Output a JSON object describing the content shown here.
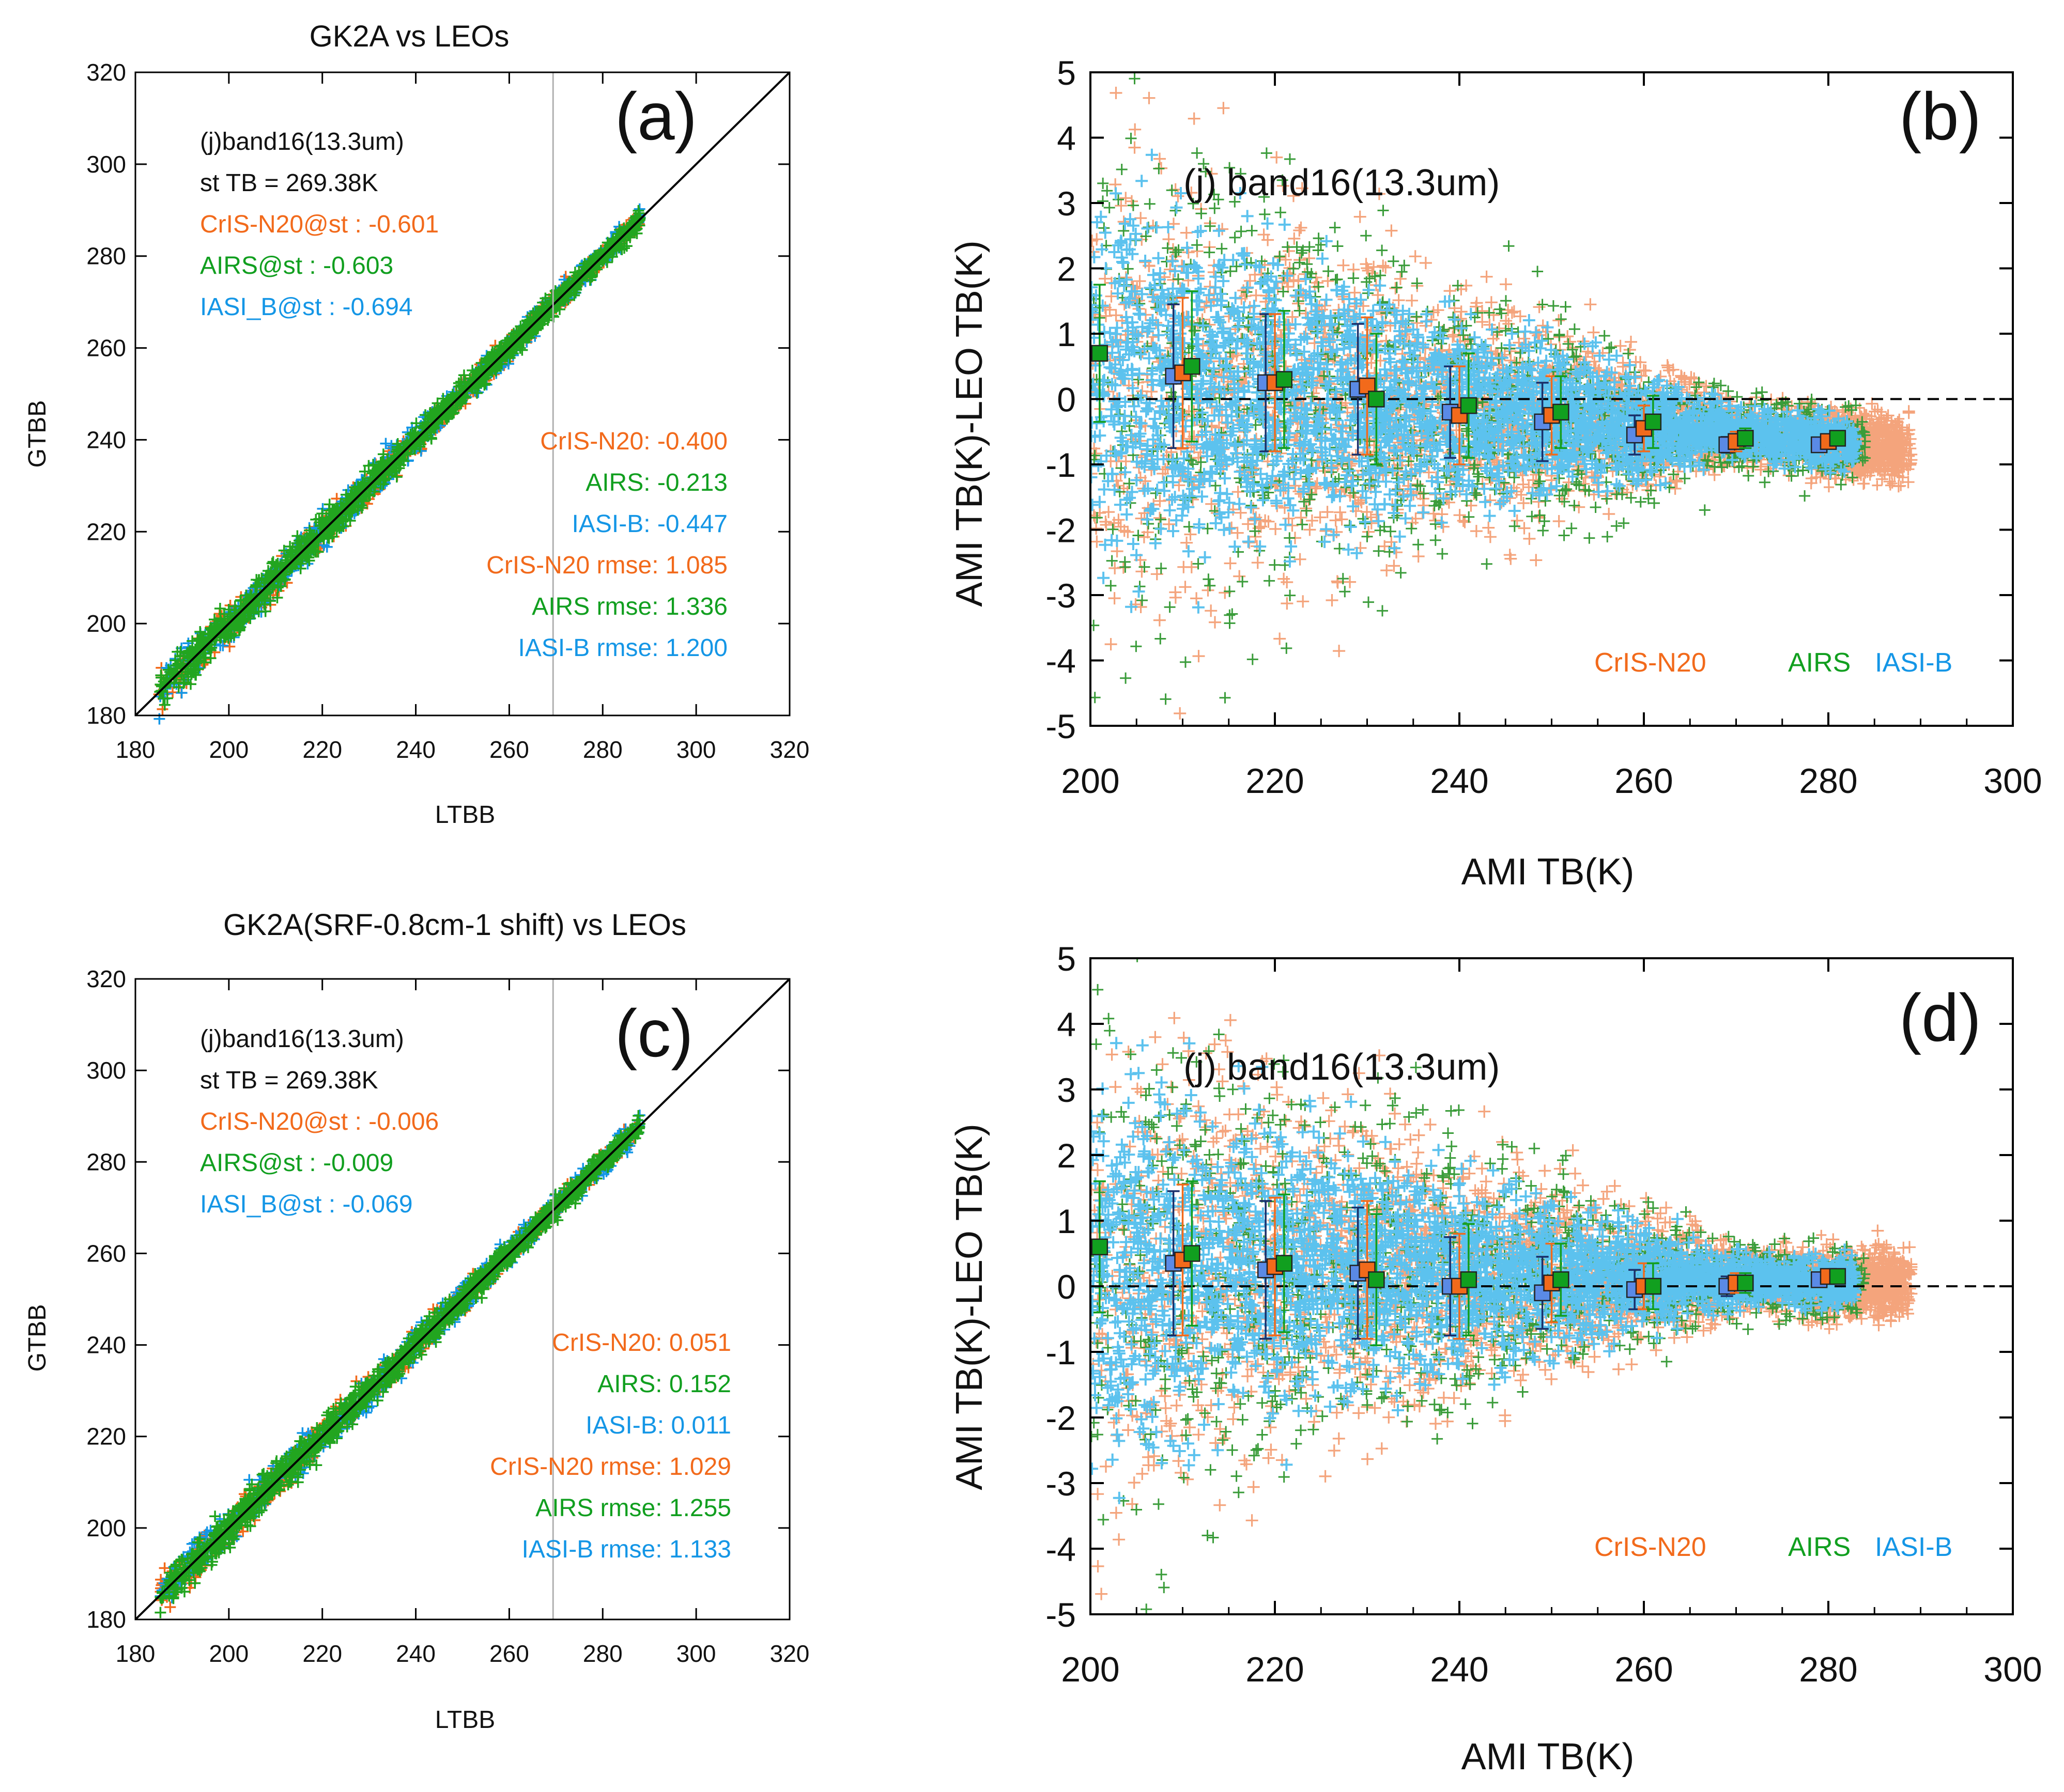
{
  "chart_data": [
    {
      "panel": "(a)",
      "type": "scatter",
      "title": "GK2A vs LEOs",
      "xlabel": "LTBB",
      "ylabel": "GTBB",
      "xlim": [
        180,
        320
      ],
      "ylim": [
        180,
        320
      ],
      "xticks": [
        "180",
        "200",
        "220",
        "240",
        "260",
        "280",
        "300",
        "320"
      ],
      "yticks": [
        "180",
        "200",
        "220",
        "240",
        "260",
        "280",
        "300",
        "320"
      ],
      "reference_line": "1:1",
      "vertical_marker_x": 269.38,
      "data_range": [
        185,
        288
      ],
      "spread": 3,
      "annotations_top": [
        {
          "text": "(j)band16(13.3um)",
          "color": "#111111"
        },
        {
          "text": "st TB = 269.38K",
          "color": "#111111"
        },
        {
          "text": "CrIS-N20@st : -0.601",
          "color": "#f26a1b"
        },
        {
          "text": "AIRS@st : -0.603",
          "color": "#119f1f"
        },
        {
          "text": "IASI_B@st : -0.694",
          "color": "#1496e6"
        }
      ],
      "annotations_bottom": [
        {
          "text": "CrIS-N20: -0.400",
          "color": "#f26a1b"
        },
        {
          "text": "AIRS: -0.213",
          "color": "#119f1f"
        },
        {
          "text": "IASI-B: -0.447",
          "color": "#1496e6"
        },
        {
          "text": "CrIS-N20 rmse: 1.085",
          "color": "#f26a1b"
        },
        {
          "text": "AIRS rmse: 1.336",
          "color": "#119f1f"
        },
        {
          "text": "IASI-B rmse: 1.200",
          "color": "#1496e6"
        }
      ]
    },
    {
      "panel": "(b)",
      "type": "scatter",
      "title": "(j) band16(13.3um)",
      "xlabel": "AMI TB(K)",
      "ylabel": "AMI TB(K)-LEO TB(K)",
      "xlim": [
        200,
        300
      ],
      "ylim": [
        -5,
        5
      ],
      "xticks": [
        "200",
        "220",
        "240",
        "260",
        "280",
        "300"
      ],
      "yticks": [
        "-5",
        "-4",
        "-3",
        "-2",
        "-1",
        "0",
        "1",
        "2",
        "3",
        "4",
        "5"
      ],
      "reference_line_y": 0,
      "legend": [
        {
          "text": "CrIS-N20",
          "color": "#f26a1b"
        },
        {
          "text": "AIRS",
          "color": "#119f1f"
        },
        {
          "text": "IASI-B",
          "color": "#1496e6"
        }
      ],
      "series": [
        {
          "name": "IASI-B",
          "color": "#5a8ae6",
          "x": [
            209,
            219,
            229,
            239,
            249,
            259,
            269,
            279
          ],
          "y": [
            0.35,
            0.25,
            0.15,
            -0.2,
            -0.35,
            -0.55,
            -0.7,
            -0.7
          ],
          "err": [
            1.1,
            1.05,
            1.0,
            0.7,
            0.6,
            0.3,
            0.12,
            0.08
          ]
        },
        {
          "name": "CrIS-N20",
          "color": "#f26a1b",
          "x": [
            210,
            220,
            230,
            240,
            250,
            260,
            270,
            280
          ],
          "y": [
            0.4,
            0.25,
            0.2,
            -0.25,
            -0.25,
            -0.45,
            -0.65,
            -0.65
          ],
          "err": [
            1.15,
            1.05,
            1.05,
            0.75,
            0.6,
            0.35,
            0.15,
            0.1
          ]
        },
        {
          "name": "AIRS",
          "color": "#119f1f",
          "x": [
            201,
            211,
            221,
            231,
            241,
            251,
            261,
            271,
            281
          ],
          "y": [
            0.7,
            0.5,
            0.3,
            0.0,
            -0.1,
            -0.2,
            -0.35,
            -0.6,
            -0.6
          ],
          "err": [
            1.05,
            1.15,
            1.05,
            1.0,
            0.8,
            0.55,
            0.4,
            0.15,
            0.1
          ]
        }
      ]
    },
    {
      "panel": "(c)",
      "type": "scatter",
      "title": "GK2A(SRF-0.8cm-1 shift) vs LEOs",
      "xlabel": "LTBB",
      "ylabel": "GTBB",
      "xlim": [
        180,
        320
      ],
      "ylim": [
        180,
        320
      ],
      "xticks": [
        "180",
        "200",
        "220",
        "240",
        "260",
        "280",
        "300",
        "320"
      ],
      "yticks": [
        "180",
        "200",
        "220",
        "240",
        "260",
        "280",
        "300",
        "320"
      ],
      "reference_line": "1:1",
      "vertical_marker_x": 269.38,
      "data_range": [
        185,
        288
      ],
      "spread": 3,
      "annotations_top": [
        {
          "text": "(j)band16(13.3um)",
          "color": "#111111"
        },
        {
          "text": "st TB = 269.38K",
          "color": "#111111"
        },
        {
          "text": "CrIS-N20@st : -0.006",
          "color": "#f26a1b"
        },
        {
          "text": "AIRS@st : -0.009",
          "color": "#119f1f"
        },
        {
          "text": "IASI_B@st : -0.069",
          "color": "#1496e6"
        }
      ],
      "annotations_bottom": [
        {
          "text": "CrIS-N20: 0.051",
          "color": "#f26a1b"
        },
        {
          "text": "AIRS: 0.152",
          "color": "#119f1f"
        },
        {
          "text": "IASI-B: 0.011",
          "color": "#1496e6"
        },
        {
          "text": "CrIS-N20 rmse: 1.029",
          "color": "#f26a1b"
        },
        {
          "text": "AIRS rmse: 1.255",
          "color": "#119f1f"
        },
        {
          "text": "IASI-B rmse: 1.133",
          "color": "#1496e6"
        }
      ]
    },
    {
      "panel": "(d)",
      "type": "scatter",
      "title": "(j) band16(13.3um)",
      "xlabel": "AMI TB(K)",
      "ylabel": "AMI TB(K)-LEO TB(K)",
      "xlim": [
        200,
        300
      ],
      "ylim": [
        -5,
        5
      ],
      "xticks": [
        "200",
        "220",
        "240",
        "260",
        "280",
        "300"
      ],
      "yticks": [
        "-5",
        "-4",
        "-3",
        "-2",
        "-1",
        "0",
        "1",
        "2",
        "3",
        "4",
        "5"
      ],
      "reference_line_y": 0,
      "legend": [
        {
          "text": "CrIS-N20",
          "color": "#f26a1b"
        },
        {
          "text": "AIRS",
          "color": "#119f1f"
        },
        {
          "text": "IASI-B",
          "color": "#1496e6"
        }
      ],
      "series": [
        {
          "name": "IASI-B",
          "color": "#5a8ae6",
          "x": [
            209,
            219,
            229,
            239,
            249,
            259,
            269,
            279
          ],
          "y": [
            0.35,
            0.25,
            0.2,
            0.0,
            -0.1,
            -0.05,
            0.0,
            0.1
          ],
          "err": [
            1.1,
            1.05,
            1.0,
            0.75,
            0.55,
            0.3,
            0.15,
            0.1
          ]
        },
        {
          "name": "CrIS-N20",
          "color": "#f26a1b",
          "x": [
            210,
            220,
            230,
            240,
            250,
            260,
            270,
            280
          ],
          "y": [
            0.4,
            0.3,
            0.25,
            0.0,
            0.05,
            0.0,
            0.05,
            0.15
          ],
          "err": [
            1.15,
            1.05,
            1.05,
            0.8,
            0.6,
            0.35,
            0.15,
            0.1
          ]
        },
        {
          "name": "AIRS",
          "color": "#119f1f",
          "x": [
            201,
            211,
            221,
            231,
            241,
            251,
            261,
            271,
            281
          ],
          "y": [
            0.6,
            0.5,
            0.35,
            0.1,
            0.1,
            0.1,
            0.0,
            0.05,
            0.15
          ],
          "err": [
            1.0,
            1.1,
            1.05,
            1.0,
            0.85,
            0.55,
            0.35,
            0.15,
            0.1
          ]
        }
      ]
    }
  ]
}
